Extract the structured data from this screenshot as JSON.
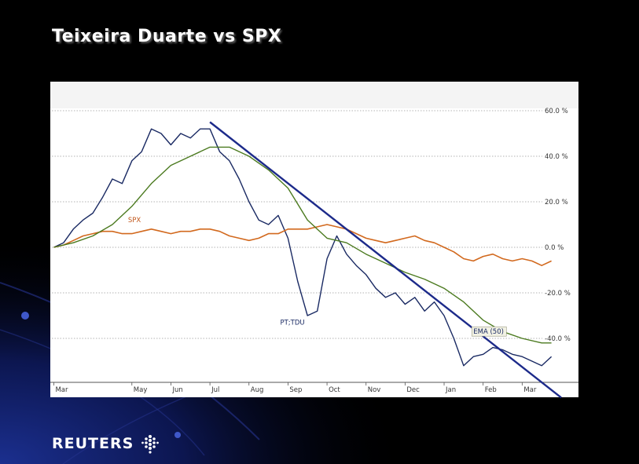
{
  "slide": {
    "title": "Teixeira Duarte vs SPX",
    "brand": "REUTERS"
  },
  "chart_data": {
    "type": "line",
    "title": "Teixeira Duarte vs SPX",
    "xlabel": "",
    "ylabel": "",
    "x_ticks": [
      "Mar",
      "May",
      "Jun",
      "Jul",
      "Aug",
      "Sep",
      "Oct",
      "Nov",
      "Dec",
      "Jan",
      "Feb",
      "Mar"
    ],
    "x_tick_pos": [
      0.0,
      2.0,
      3.0,
      4.0,
      5.0,
      6.0,
      7.0,
      8.0,
      9.0,
      10.0,
      11.0,
      12.0
    ],
    "y_ticks": [
      "60.0 %",
      "40.0 %",
      "20.0 %",
      "0.0 %",
      "-20.0 %",
      "-40.0 %"
    ],
    "y_tick_values": [
      60,
      40,
      20,
      0,
      -20,
      -40
    ],
    "ylim": [
      -65,
      65
    ],
    "xlim": [
      -0.05,
      13.0
    ],
    "grid": true,
    "colors": {
      "tdu": "#1a2a63",
      "spx": "#d2691e",
      "ema": "#4b7a1f",
      "trend": "#1c2a8a",
      "plot_bg": "#ffffff"
    },
    "series": [
      {
        "name": "PT;TDU",
        "x": [
          0.0,
          0.25,
          0.5,
          0.75,
          1.0,
          1.25,
          1.5,
          1.75,
          2.0,
          2.25,
          2.5,
          2.75,
          3.0,
          3.25,
          3.5,
          3.75,
          4.0,
          4.25,
          4.5,
          4.75,
          5.0,
          5.25,
          5.5,
          5.75,
          6.0,
          6.25,
          6.5,
          6.75,
          7.0,
          7.25,
          7.5,
          7.75,
          8.0,
          8.25,
          8.5,
          8.75,
          9.0,
          9.25,
          9.5,
          9.75,
          10.0,
          10.25,
          10.5,
          10.75,
          11.0,
          11.25,
          11.5,
          11.75,
          12.0,
          12.25,
          12.5,
          12.75
        ],
        "values": [
          0,
          2,
          8,
          12,
          15,
          22,
          30,
          28,
          38,
          42,
          52,
          50,
          45,
          50,
          48,
          52,
          52,
          42,
          38,
          30,
          20,
          12,
          10,
          14,
          4,
          -15,
          -30,
          -28,
          -5,
          5,
          -3,
          -8,
          -12,
          -18,
          -22,
          -20,
          -25,
          -22,
          -28,
          -24,
          -30,
          -40,
          -52,
          -48,
          -47,
          -44,
          -45,
          -47,
          -48,
          -50,
          -52,
          -48
        ]
      },
      {
        "name": "SPX",
        "x": [
          0.0,
          0.25,
          0.5,
          0.75,
          1.0,
          1.25,
          1.5,
          1.75,
          2.0,
          2.25,
          2.5,
          2.75,
          3.0,
          3.25,
          3.5,
          3.75,
          4.0,
          4.25,
          4.5,
          4.75,
          5.0,
          5.25,
          5.5,
          5.75,
          6.0,
          6.25,
          6.5,
          6.75,
          7.0,
          7.25,
          7.5,
          7.75,
          8.0,
          8.25,
          8.5,
          8.75,
          9.0,
          9.25,
          9.5,
          9.75,
          10.0,
          10.25,
          10.5,
          10.75,
          11.0,
          11.25,
          11.5,
          11.75,
          12.0,
          12.25,
          12.5,
          12.75
        ],
        "values": [
          0,
          1,
          3,
          5,
          6,
          7,
          7,
          6,
          6,
          7,
          8,
          7,
          6,
          7,
          7,
          8,
          8,
          7,
          5,
          4,
          3,
          4,
          6,
          6,
          8,
          8,
          8,
          9,
          10,
          9,
          8,
          6,
          4,
          3,
          2,
          3,
          4,
          5,
          3,
          2,
          0,
          -2,
          -5,
          -6,
          -4,
          -3,
          -5,
          -6,
          -5,
          -6,
          -8,
          -6
        ]
      },
      {
        "name": "EMA (50)",
        "x": [
          0.0,
          0.5,
          1.0,
          1.5,
          2.0,
          2.5,
          3.0,
          3.5,
          4.0,
          4.5,
          5.0,
          5.5,
          6.0,
          6.5,
          7.0,
          7.5,
          8.0,
          8.5,
          9.0,
          9.5,
          10.0,
          10.5,
          11.0,
          11.5,
          12.0,
          12.5,
          12.75
        ],
        "values": [
          0,
          2,
          5,
          10,
          18,
          28,
          36,
          40,
          44,
          44,
          40,
          34,
          26,
          12,
          4,
          2,
          -3,
          -7,
          -11,
          -14,
          -18,
          -24,
          -32,
          -37,
          -40,
          -42,
          -42
        ]
      }
    ],
    "trendline": {
      "x": [
        4.0,
        13.0
      ],
      "values": [
        55,
        -66
      ]
    },
    "annotations": [
      {
        "text": "SPX",
        "x": 1.9,
        "y": 11
      },
      {
        "text": "PT;TDU",
        "x": 5.8,
        "y": -34
      },
      {
        "text": "EMA (50)",
        "x": 10.75,
        "y": -38
      }
    ]
  }
}
